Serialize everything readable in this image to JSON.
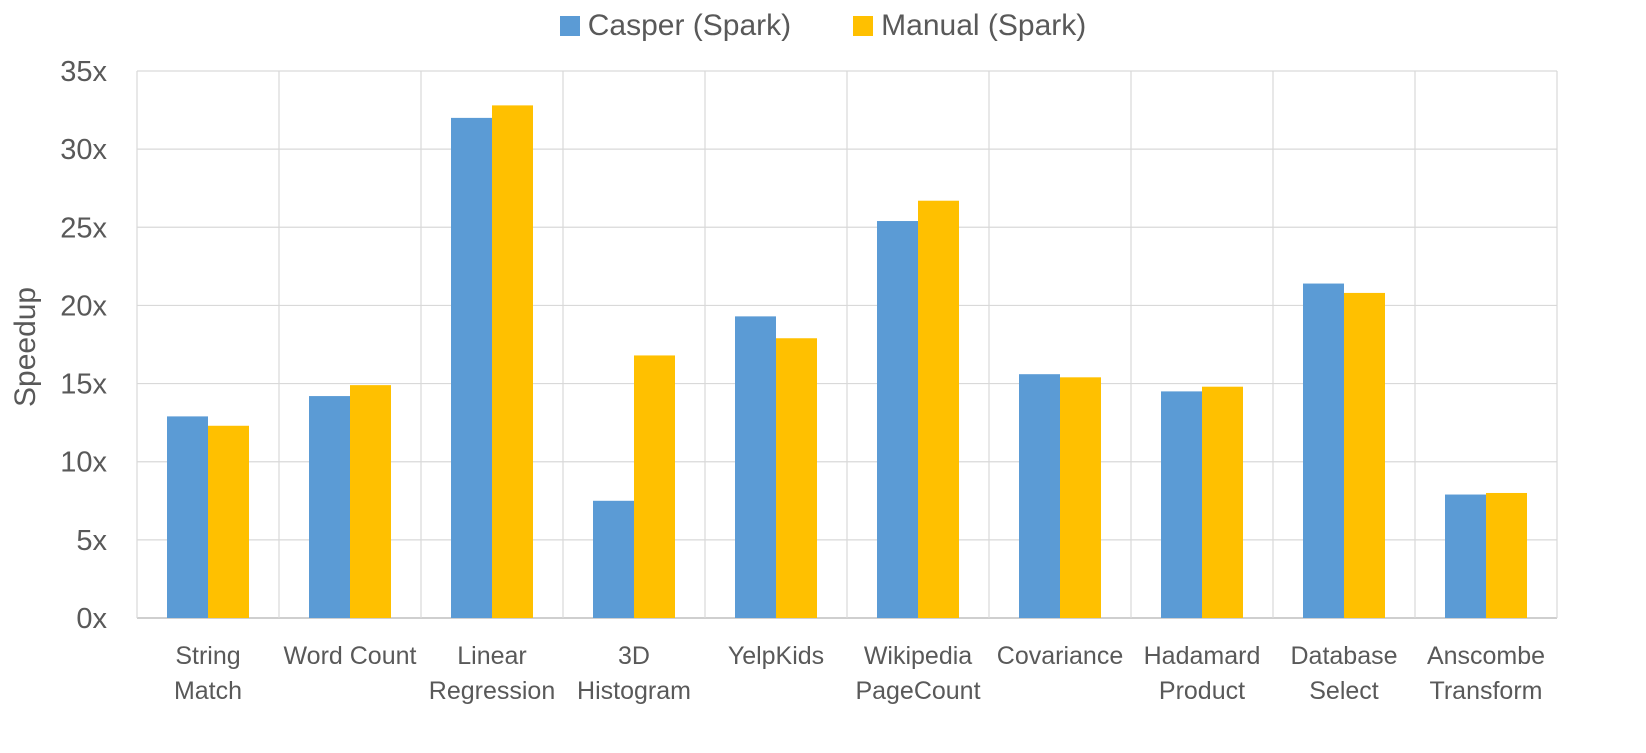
{
  "chart_data": {
    "type": "bar",
    "title": "",
    "xlabel": "",
    "ylabel": "Speedup",
    "ylim": [
      0,
      35
    ],
    "ytick_values": [
      0,
      5,
      10,
      15,
      20,
      25,
      30,
      35
    ],
    "ytick_labels": [
      "0x",
      "5x",
      "10x",
      "15x",
      "20x",
      "25x",
      "30x",
      "35x"
    ],
    "categories": [
      [
        "String",
        "Match"
      ],
      [
        "Word Count"
      ],
      [
        "Linear",
        "Regression"
      ],
      [
        "3D",
        "Histogram"
      ],
      [
        "YelpKids"
      ],
      [
        "Wikipedia",
        "PageCount"
      ],
      [
        "Covariance"
      ],
      [
        "Hadamard",
        "Product"
      ],
      [
        "Database",
        "Select"
      ],
      [
        "Anscombe",
        "Transform"
      ]
    ],
    "series": [
      {
        "name": "Casper (Spark)",
        "color": "#5B9BD5",
        "values": [
          12.9,
          14.2,
          32.0,
          7.5,
          19.3,
          25.4,
          15.6,
          14.5,
          21.4,
          7.9
        ]
      },
      {
        "name": "Manual (Spark)",
        "color": "#FFC000",
        "values": [
          12.3,
          14.9,
          32.8,
          16.8,
          17.9,
          26.7,
          15.4,
          14.8,
          20.8,
          8.0
        ]
      }
    ],
    "grid": true,
    "legend_position": "top-center"
  }
}
